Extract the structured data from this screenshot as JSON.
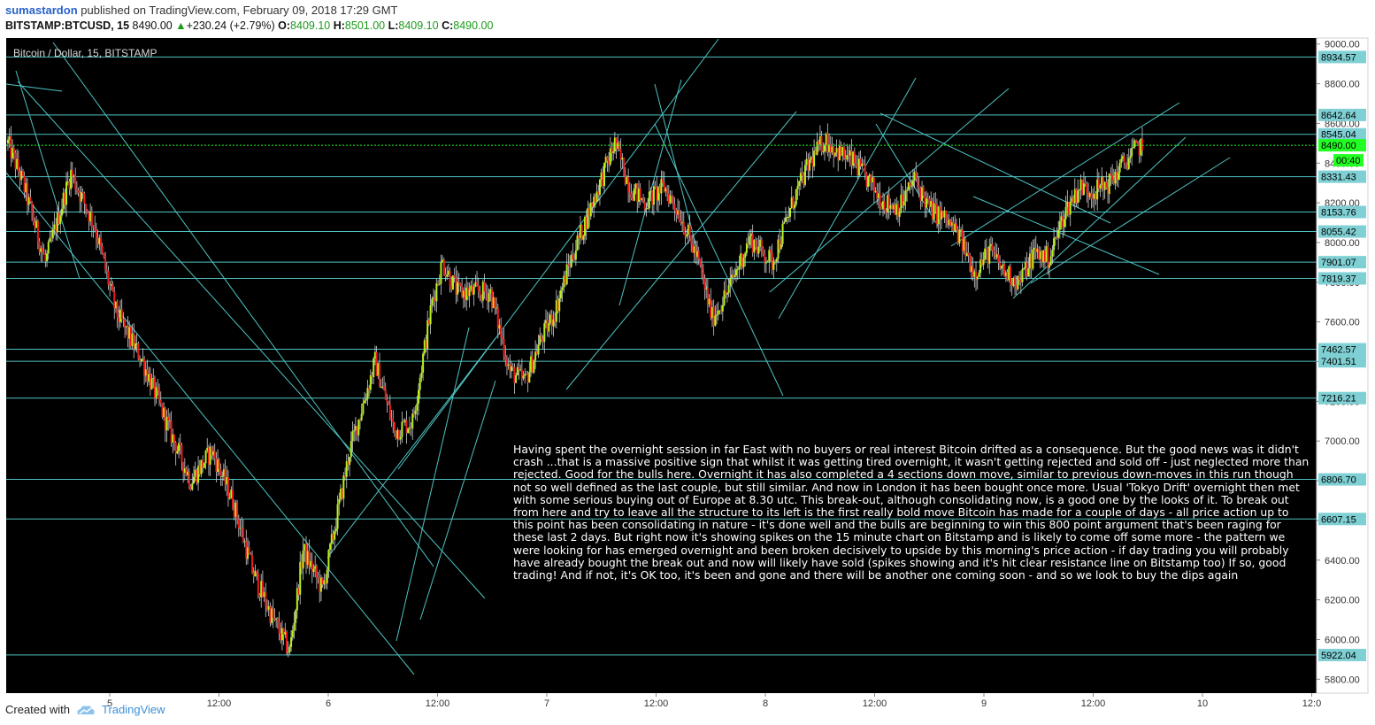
{
  "header": {
    "author": "sumastardon",
    "published_text": "published on TradingView.com, February 09, 2018 17:29 GMT",
    "symbol": "BITSTAMP:BTCUSD, 15",
    "last": "8490.00",
    "change": "+230.24 (+2.79%)",
    "o_label": "O:",
    "o_value": "8409.10",
    "h_label": "H:",
    "h_value": "8501.00",
    "l_label": "L:",
    "l_value": "8409.10",
    "c_label": "C:",
    "c_value": "8490.00"
  },
  "footer": {
    "created_with": "Created with",
    "brand": "TradingView",
    "brand_icon": "tradingview-cloud-icon"
  },
  "colors": {
    "background": "#000000",
    "up": "#b7f21a",
    "down": "#e81c1c",
    "line": "#4fc3c3",
    "label_bg": "#7fd0d4",
    "current": "#22ff22"
  },
  "chart_data": {
    "type": "candlestick",
    "title": "Bitcoin / Dollar, 15, BITSTAMP",
    "ylim": [
      5730,
      9030
    ],
    "y_ticks": [
      5800,
      6000,
      6200,
      6400,
      6600,
      6800,
      7000,
      7200,
      7400,
      7600,
      7800,
      8000,
      8200,
      8400,
      8600,
      8800,
      9000
    ],
    "y_tick_labels": [
      "5800.00",
      "6000.00",
      "6200.00",
      "6400.00",
      "6600.00",
      "6800.00",
      "7000.00",
      "7200.00",
      "7400.00",
      "7600.00",
      "7800.00",
      "8000.00",
      "8200.00",
      "8400.00",
      "8600.00",
      "8800.00",
      "9000.00"
    ],
    "x_ticks": [
      "5",
      "12:00",
      "6",
      "12:00",
      "7",
      "12:00",
      "8",
      "12:00",
      "9",
      "12:00",
      "10",
      "12:0"
    ],
    "horizontal_levels": [
      8934.57,
      8642.64,
      8545.04,
      8331.43,
      8153.76,
      8055.42,
      7901.07,
      7819.37,
      7462.57,
      7401.51,
      7216.21,
      6806.7,
      6607.15,
      5922.04
    ],
    "horizontal_level_labels": [
      "8934.57",
      "8642.64",
      "8545.04",
      "8331.43",
      "8153.76",
      "8055.42",
      "7901.07",
      "7819.37",
      "7462.57",
      "7401.51",
      "7216.21",
      "6806.70",
      "6607.15",
      "5922.04"
    ],
    "current_price": 8490.0,
    "current_price_label": "8490.00",
    "countdown_label": "00:40",
    "path_points": [
      [
        0,
        8500
      ],
      [
        10,
        8300
      ],
      [
        25,
        7900
      ],
      [
        42,
        8350
      ],
      [
        58,
        8080
      ],
      [
        72,
        7650
      ],
      [
        90,
        7400
      ],
      [
        108,
        7050
      ],
      [
        122,
        6800
      ],
      [
        136,
        6950
      ],
      [
        150,
        6700
      ],
      [
        163,
        6350
      ],
      [
        177,
        6100
      ],
      [
        188,
        5940
      ],
      [
        197,
        6450
      ],
      [
        210,
        6250
      ],
      [
        228,
        6950
      ],
      [
        245,
        7400
      ],
      [
        258,
        7050
      ],
      [
        270,
        7100
      ],
      [
        283,
        7700
      ],
      [
        290,
        7900
      ],
      [
        300,
        7750
      ],
      [
        312,
        7750
      ],
      [
        322,
        7750
      ],
      [
        335,
        7350
      ],
      [
        345,
        7300
      ],
      [
        355,
        7500
      ],
      [
        365,
        7650
      ],
      [
        375,
        7900
      ],
      [
        385,
        8100
      ],
      [
        395,
        8300
      ],
      [
        405,
        8500
      ],
      [
        415,
        8280
      ],
      [
        425,
        8200
      ],
      [
        438,
        8280
      ],
      [
        448,
        8150
      ],
      [
        460,
        7920
      ],
      [
        470,
        7620
      ],
      [
        480,
        7750
      ],
      [
        495,
        8020
      ],
      [
        510,
        7900
      ],
      [
        525,
        8230
      ],
      [
        535,
        8400
      ],
      [
        545,
        8520
      ],
      [
        555,
        8450
      ],
      [
        565,
        8400
      ],
      [
        575,
        8300
      ],
      [
        585,
        8200
      ],
      [
        595,
        8180
      ],
      [
        605,
        8320
      ],
      [
        615,
        8170
      ],
      [
        625,
        8120
      ],
      [
        635,
        8030
      ],
      [
        645,
        7850
      ],
      [
        655,
        7960
      ],
      [
        665,
        7850
      ],
      [
        675,
        7800
      ],
      [
        685,
        7950
      ],
      [
        695,
        7920
      ],
      [
        705,
        8150
      ],
      [
        715,
        8280
      ],
      [
        725,
        8260
      ],
      [
        735,
        8300
      ],
      [
        748,
        8430
      ],
      [
        757,
        8500
      ]
    ]
  },
  "annotation": {
    "text": "Having spent the overnight session in far East with no buyers or real interest Bitcoin drifted as a consequence. But the good news was it didn't crash ...that is a massive positive sign that whilst it was getting tired overnight, it wasn't getting rejected and sold off - just neglected more than rejected. Good for the bulls here. Overnight it has also completed a 4 sections down move, similar to previous down-moves in this run though not so well defined as the last couple, but still similar. And now in London it has been bought once more. Usual 'Tokyo Drift' overnight then met with some serious buying out of Europe at 8.30 utc. This break-out, although consolidating now, is a good one by the looks of it. To break out from here and try to leave all the structure to its left is the first really bold move Bitcoin has made for a couple of days - all price action up to this point has been consolidating in nature - it's done well and the bulls are beginning to win this 800 point argument that's been raging for these last 2 days. But right now it's showing spikes on the 15 minute chart on Bitstamp and is likely to come off some more - the pattern we were looking for has emerged overnight and been broken decisively to upside by this morning's price action - if day trading you will probably have already bought the break out and now will likely have sold (spikes showing and it's hit clear resistance line on Bitstamp too) If so, good trading! And if not, it's OK too, it's been and gone and there will be another one coming soon - and so we look to buy the dips again"
  }
}
